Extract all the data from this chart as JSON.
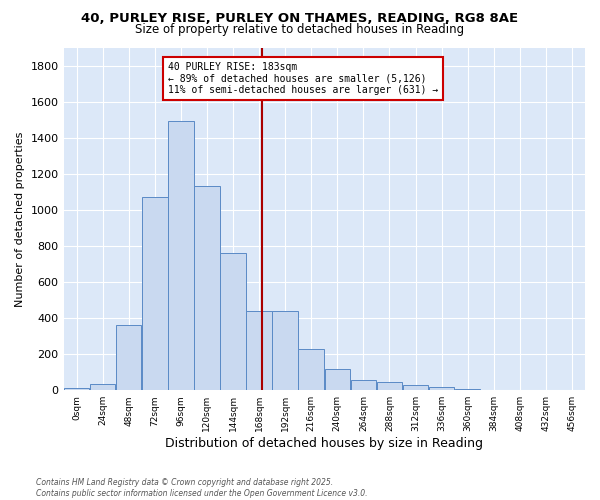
{
  "title_line1": "40, PURLEY RISE, PURLEY ON THAMES, READING, RG8 8AE",
  "title_line2": "Size of property relative to detached houses in Reading",
  "xlabel": "Distribution of detached houses by size in Reading",
  "ylabel": "Number of detached properties",
  "bin_edges": [
    0,
    24,
    48,
    72,
    96,
    120,
    144,
    168,
    192,
    216,
    240,
    264,
    288,
    312,
    336,
    360,
    384,
    408,
    432,
    456,
    480
  ],
  "bar_heights": [
    10,
    35,
    360,
    1070,
    1490,
    1130,
    760,
    440,
    440,
    230,
    120,
    55,
    45,
    30,
    20,
    5,
    3,
    2,
    1,
    0
  ],
  "bar_facecolor": "#c9d9f0",
  "bar_edgecolor": "#5a8ac6",
  "vline_x": 183,
  "vline_color": "#aa0000",
  "annotation_text": "40 PURLEY RISE: 183sqm\n← 89% of detached houses are smaller (5,126)\n11% of semi-detached houses are larger (631) →",
  "annotation_box_facecolor": "#ffffff",
  "annotation_box_edgecolor": "#cc0000",
  "ylim": [
    0,
    1900
  ],
  "yticks": [
    0,
    200,
    400,
    600,
    800,
    1000,
    1200,
    1400,
    1600,
    1800
  ],
  "xlim": [
    0,
    480
  ],
  "background_color": "#dce8f8",
  "grid_color": "#ffffff",
  "footer_line1": "Contains HM Land Registry data © Crown copyright and database right 2025.",
  "footer_line2": "Contains public sector information licensed under the Open Government Licence v3.0."
}
